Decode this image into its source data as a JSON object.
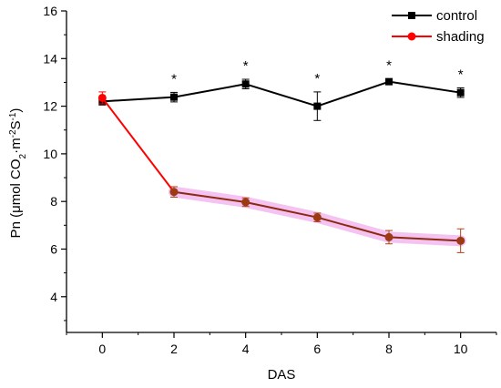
{
  "chart_data": {
    "type": "line",
    "x": [
      0,
      2,
      4,
      6,
      8,
      10
    ],
    "xlabel": "DAS",
    "ylabel": {
      "pre": "Pn (μmol CO",
      "sub": "2",
      "mid1": "·m",
      "sup1": "-2",
      "mid2": "S",
      "sup2": "-1",
      "post": ")"
    },
    "xlim": [
      -1,
      11
    ],
    "ylim": [
      2.5,
      16
    ],
    "xticks": [
      0,
      2,
      4,
      6,
      8,
      10
    ],
    "yticks": [
      4,
      6,
      8,
      10,
      12,
      14,
      16
    ],
    "xtick_labels": [
      "0",
      "2",
      "4",
      "6",
      "8",
      "10"
    ],
    "ytick_labels": [
      "4",
      "6",
      "8",
      "10",
      "12",
      "14",
      "16"
    ],
    "grid": false,
    "legend_position": "top-right",
    "series": [
      {
        "name": "control",
        "color": "#000000",
        "marker": "square",
        "values": [
          12.2,
          12.38,
          12.93,
          12.0,
          13.03,
          12.57
        ],
        "errors": [
          0.15,
          0.2,
          0.2,
          0.6,
          0.12,
          0.2
        ]
      },
      {
        "name": "shading",
        "color": "#ff0000",
        "line_color_after_first": "#8b2a10",
        "marker": "circle",
        "values": [
          12.35,
          8.4,
          7.97,
          7.33,
          6.5,
          6.35
        ],
        "errors": [
          0.25,
          0.22,
          0.18,
          0.18,
          0.28,
          0.5
        ]
      }
    ],
    "annotations": [
      {
        "x": 2,
        "text": "*"
      },
      {
        "x": 4,
        "text": "*"
      },
      {
        "x": 6,
        "text": "*"
      },
      {
        "x": 8,
        "text": "*"
      },
      {
        "x": 10,
        "text": "*"
      }
    ]
  }
}
